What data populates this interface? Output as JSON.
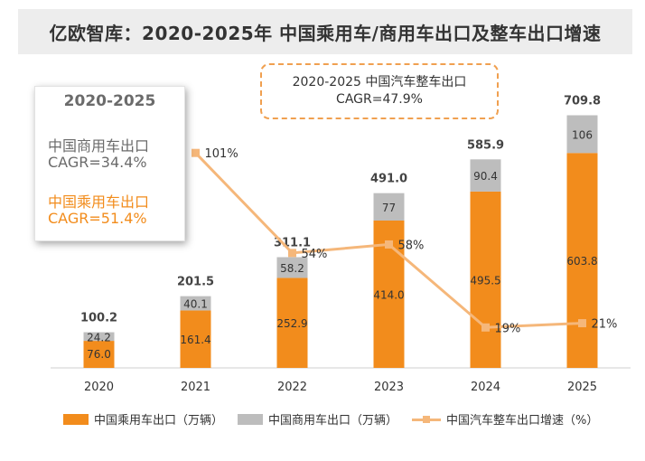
{
  "title": "亿欧智库：2020-2025年 中国乘用车/商用车出口及整车出口增速",
  "cagr_card": {
    "period": "2020-2025",
    "commercial_label": "中国商用车出口",
    "commercial_cagr": "CAGR=34.4%",
    "passenger_label": "中国乘用车出口",
    "passenger_cagr": "CAGR=51.4%"
  },
  "total_box": {
    "line1": "2020-2025 中国汽车整车出口",
    "line2": "CAGR=47.9%"
  },
  "legend": {
    "passenger": "中国乘用车出口（万辆）",
    "commercial": "中国商用车出口（万辆）",
    "growth": "中国汽车整车出口增速（%）"
  },
  "colors": {
    "passenger": "#f28c1c",
    "commercial": "#bdbdbd",
    "growth": "#f5b77a"
  },
  "chart_data": {
    "type": "bar",
    "stacked": true,
    "categories": [
      "2020",
      "2021",
      "2022",
      "2023",
      "2024",
      "2025"
    ],
    "series": [
      {
        "name": "中国乘用车出口（万辆）",
        "values": [
          76.0,
          161.4,
          252.9,
          414.0,
          495.5,
          603.8
        ],
        "labels": [
          "76.0",
          "161.4",
          "252.9",
          "414.0",
          "495.5",
          "603.8"
        ]
      },
      {
        "name": "中国商用车出口（万辆）",
        "values": [
          24.2,
          40.1,
          58.2,
          77,
          90.4,
          106
        ],
        "labels": [
          "24.2",
          "40.1",
          "58.2",
          "77",
          "90.4",
          "106"
        ]
      }
    ],
    "totals": [
      "100.2",
      "201.5",
      "311.1",
      "491.0",
      "585.9",
      "709.8"
    ],
    "line_series": {
      "name": "中国汽车整车出口增速（%）",
      "categories": [
        "2021",
        "2022",
        "2023",
        "2024",
        "2025"
      ],
      "values": [
        101,
        54,
        58,
        19,
        21
      ],
      "labels": [
        "101%",
        "54%",
        "58%",
        "19%",
        "21%"
      ]
    },
    "ylim": [
      0,
      800
    ],
    "line_ylim": [
      0,
      110
    ],
    "grid": false,
    "legend_position": "bottom"
  }
}
